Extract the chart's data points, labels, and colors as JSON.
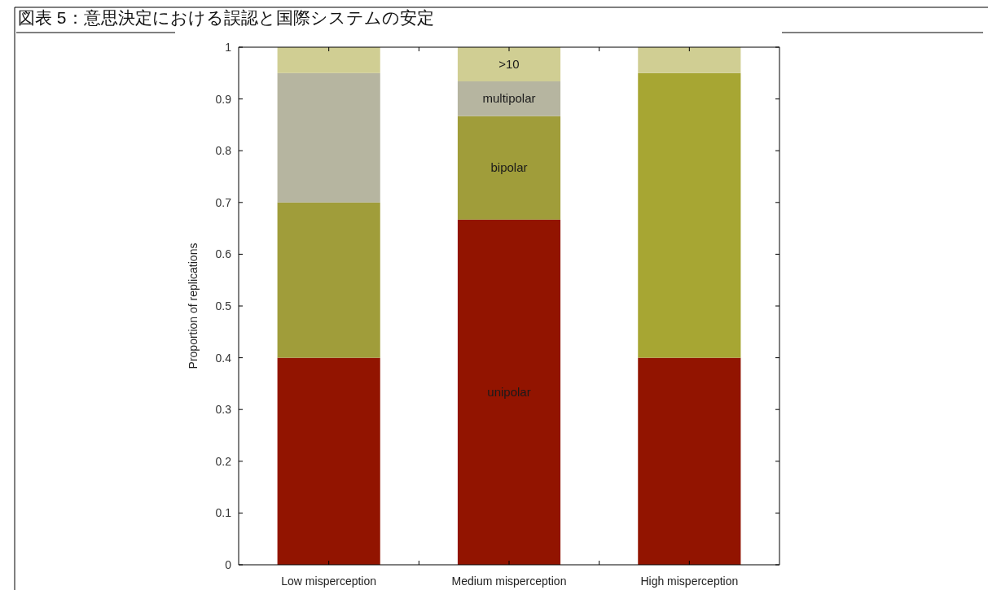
{
  "chart_data": {
    "type": "bar",
    "title": "図表 5：意思決定における誤認と国際システムの安定",
    "ylabel": "Proportion of replications",
    "categories": [
      "Low misperception",
      "Medium misperception",
      "High misperception"
    ],
    "stacked": true,
    "ylim": [
      0,
      1
    ],
    "yticks": [
      0,
      0.1,
      0.2,
      0.3,
      0.4,
      0.5,
      0.6,
      0.7,
      0.8,
      0.9,
      1
    ],
    "grid": false,
    "legend": false,
    "series": [
      {
        "name": "unipolar",
        "color": "#921400",
        "values": [
          0.4,
          0.667,
          0.4
        ]
      },
      {
        "name": "bipolar",
        "colors": [
          "#a09d3a",
          "#a09d3a",
          "#a7a633"
        ],
        "values": [
          0.3,
          0.2,
          0.55
        ]
      },
      {
        "name": "multipolar",
        "color": "#b6b5a0",
        "values": [
          0.25,
          0.067,
          0
        ]
      },
      {
        "name": ">10",
        "color": "#d0ce93",
        "values": [
          0.05,
          0.066,
          0.05
        ]
      }
    ]
  }
}
